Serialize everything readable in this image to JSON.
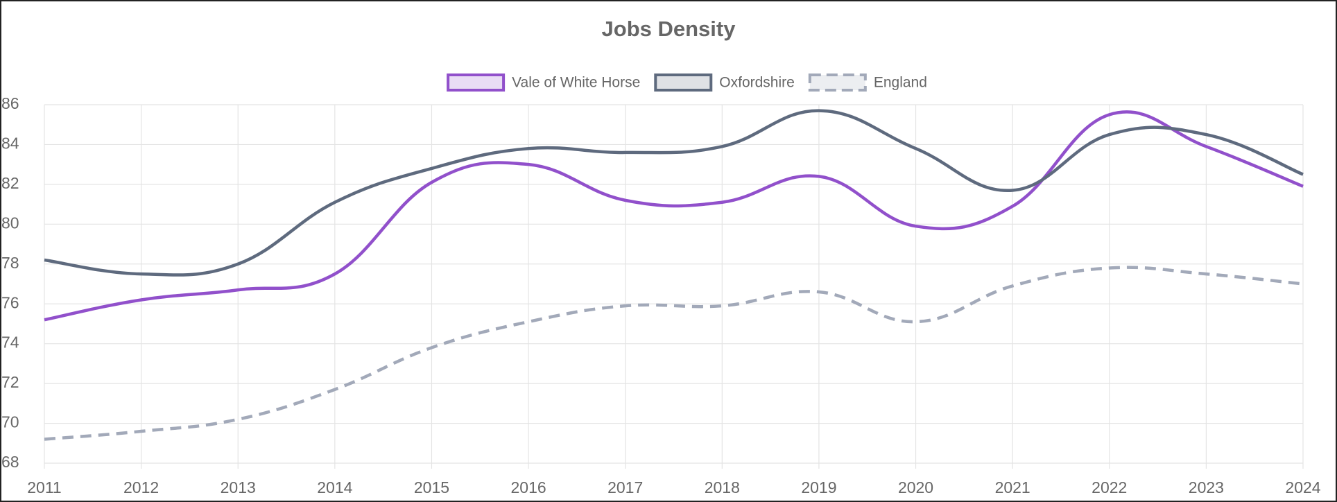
{
  "chart_data": {
    "type": "line",
    "title": "Jobs Density",
    "x": [
      2011,
      2012,
      2013,
      2014,
      2015,
      2016,
      2017,
      2018,
      2019,
      2020,
      2021,
      2022,
      2023,
      2024
    ],
    "xlim": [
      2011,
      2024
    ],
    "xticks": [
      2011,
      2012,
      2013,
      2014,
      2015,
      2016,
      2017,
      2018,
      2019,
      2020,
      2021,
      2022,
      2023,
      2024
    ],
    "ylim": [
      68,
      86
    ],
    "yticks": [
      68,
      70,
      72,
      74,
      76,
      78,
      80,
      82,
      84,
      86
    ],
    "grid": true,
    "legend": "top",
    "series": [
      {
        "name": "Vale of White Horse",
        "color": "#9150cb",
        "dashed": false,
        "values": [
          75.2,
          76.2,
          76.7,
          77.5,
          82.1,
          83.0,
          81.2,
          81.1,
          82.4,
          79.9,
          80.9,
          85.5,
          83.9,
          81.9
        ]
      },
      {
        "name": "Oxfordshire",
        "color": "#5e6a7e",
        "dashed": false,
        "values": [
          78.2,
          77.5,
          78.0,
          81.1,
          82.8,
          83.8,
          83.6,
          83.9,
          85.7,
          83.8,
          81.7,
          84.5,
          84.5,
          82.5
        ]
      },
      {
        "name": "England",
        "color": "#a2a9b9",
        "dashed": true,
        "values": [
          69.2,
          69.6,
          70.2,
          71.7,
          73.8,
          75.1,
          75.9,
          75.9,
          76.6,
          75.1,
          76.9,
          77.8,
          77.5,
          77.0
        ]
      }
    ]
  }
}
